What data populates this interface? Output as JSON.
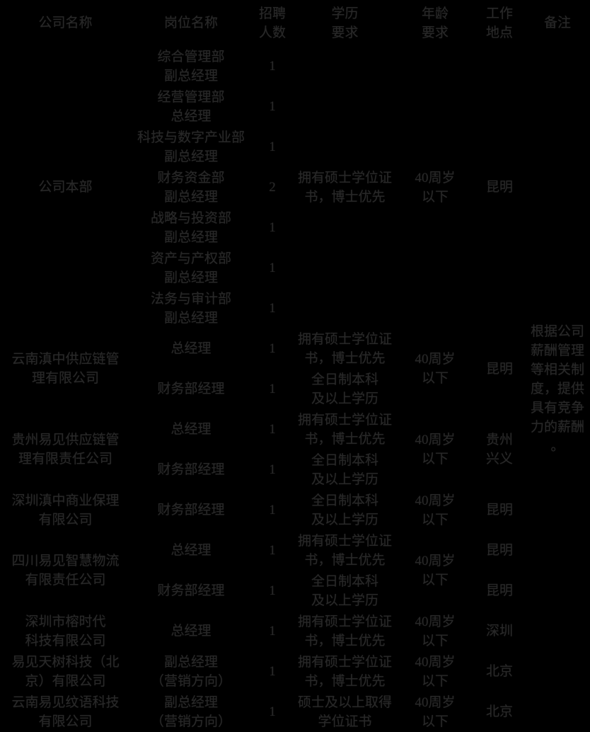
{
  "header": {
    "company": "公司名称",
    "position": "岗位名称",
    "headcount": "招聘\n人数",
    "education": "学历\n要求",
    "age": "年龄\n要求",
    "location": "工作\n地点",
    "note": "备注"
  },
  "note_all_rows": "根据公司\n薪酬管理\n等相关制\n度，提供\n具有竞争\n力的薪酬\n。",
  "rows": [
    {
      "company": "公司本部",
      "position": "综合管理部\n副总经理",
      "headcount": "1",
      "edu": "拥有硕士学位证\n书，博士优先",
      "age": "40周岁\n以下",
      "loc": "昆明"
    },
    {
      "position": "经营管理部\n总经理",
      "headcount": "1"
    },
    {
      "position": "科技与数字产业部\n副总经理",
      "headcount": "1"
    },
    {
      "position": "财务资金部\n副总经理",
      "headcount": "2"
    },
    {
      "position": "战略与投资部\n副总经理",
      "headcount": "1"
    },
    {
      "position": "资产与产权部\n副总经理",
      "headcount": "1"
    },
    {
      "position": "法务与审计部\n副总经理",
      "headcount": "1"
    },
    {
      "company": "云南滇中供应链管\n理有限公司",
      "position": "总经理",
      "headcount": "1",
      "edu": "拥有硕士学位证\n书，博士优先",
      "age": "40周岁\n以下",
      "loc": "昆明"
    },
    {
      "position": "财务部经理",
      "headcount": "1",
      "edu": "全日制本科\n及以上学历"
    },
    {
      "company": "贵州易见供应链管\n理有限责任公司",
      "position": "总经理",
      "headcount": "1",
      "edu": "拥有硕士学位证\n书，博士优先",
      "age": "40周岁\n以下",
      "loc": "贵州\n兴义"
    },
    {
      "position": "财务部经理",
      "headcount": "1",
      "edu": "全日制本科\n及以上学历"
    },
    {
      "company": "深圳滇中商业保理\n有限公司",
      "position": "财务部经理",
      "headcount": "1",
      "edu": "全日制本科\n及以上学历",
      "age": "40周岁\n以下",
      "loc": "昆明"
    },
    {
      "company": "四川易见智慧物流\n有限责任公司",
      "position": "总经理",
      "headcount": "1",
      "edu": "拥有硕士学位证\n书，博士优先",
      "age": "40周岁\n以下",
      "loc": "昆明"
    },
    {
      "position": "财务部经理",
      "headcount": "1",
      "edu": "全日制本科\n及以上学历",
      "loc": "昆明"
    },
    {
      "company": "深圳市榕时代\n科技有限公司",
      "position": "总经理",
      "headcount": "1",
      "edu": "拥有硕士学位证\n书，博士优先",
      "age": "40周岁\n以下",
      "loc": "深圳"
    },
    {
      "company": "易见天树科技（北\n京）有限公司",
      "position": "副总经理\n（营销方向）",
      "headcount": "1",
      "edu": "拥有硕士学位证\n书，博士优先",
      "age": "40周岁\n以下",
      "loc": "北京"
    },
    {
      "company": "云南易见纹语科技\n有限公司",
      "position": "副总经理\n（营销方向）",
      "headcount": "1",
      "edu": "硕士及以上取得\n学位证书",
      "age": "40周岁\n以下",
      "loc": "北京"
    }
  ]
}
